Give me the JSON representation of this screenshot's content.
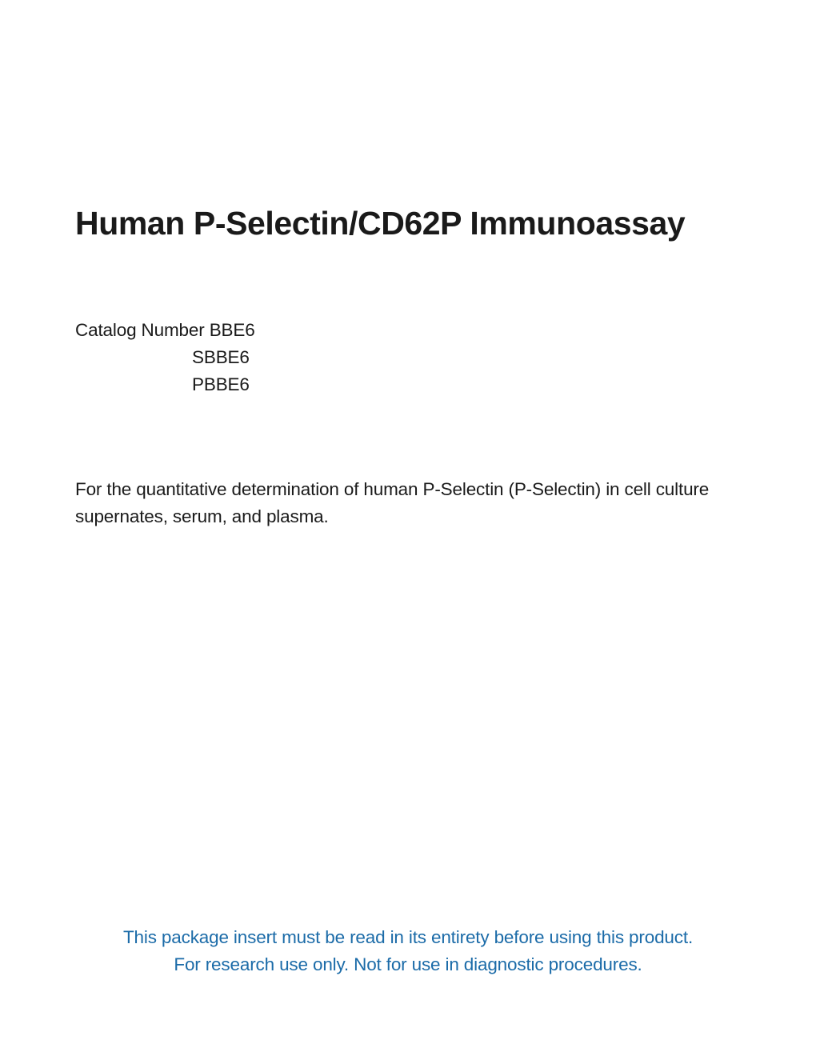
{
  "title": "Human P-Selectin/CD62P Immunoassay",
  "catalog": {
    "label": "Catalog Number ",
    "numbers": [
      "BBE6",
      "SBBE6",
      "PBBE6"
    ]
  },
  "description": "For the quantitative determination of human P-Selectin (P-Selectin) in cell culture supernates, serum, and plasma.",
  "footer": {
    "line1": "This package insert must be read in its entirety before using this product.",
    "line2": "For research use only. Not for use in diagnostic procedures."
  },
  "colors": {
    "text": "#1a1a1a",
    "accent": "#1b6ba8",
    "background": "#ffffff"
  },
  "typography": {
    "title_fontsize": 41,
    "body_fontsize": 22.5,
    "title_weight": 700,
    "body_weight": 400
  }
}
